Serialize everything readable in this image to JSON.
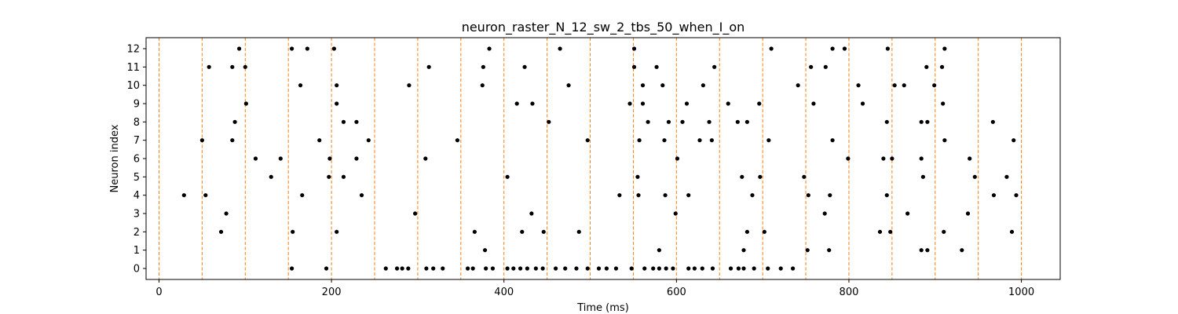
{
  "chart_data": {
    "type": "scatter",
    "title": "neuron_raster_N_12_sw_2_tbs_50_when_I_on",
    "xlabel": "Time (ms)",
    "ylabel": "Neuron index",
    "xlim": [
      -15,
      1045
    ],
    "ylim": [
      -0.6,
      12.6
    ],
    "x_ticks": [
      0,
      200,
      400,
      600,
      800,
      1000
    ],
    "y_ticks": [
      0,
      1,
      2,
      3,
      4,
      5,
      6,
      7,
      8,
      9,
      10,
      11,
      12
    ],
    "marker_color": "#000000",
    "reference_lines": {
      "orientation": "vertical",
      "style": "dashed",
      "color": "#ff7f0e",
      "x": [
        0,
        50,
        100,
        150,
        200,
        250,
        300,
        350,
        400,
        450,
        500,
        550,
        600,
        650,
        700,
        750,
        800,
        850,
        900,
        950,
        1000
      ]
    },
    "series": [
      {
        "points": [
          [
            154,
            0
          ],
          [
            194,
            0
          ],
          [
            263,
            0
          ],
          [
            276,
            0
          ],
          [
            282,
            0
          ],
          [
            289,
            0
          ],
          [
            310,
            0
          ],
          [
            318,
            0
          ],
          [
            329,
            0
          ],
          [
            358,
            0
          ],
          [
            364,
            0
          ],
          [
            379,
            0
          ],
          [
            387,
            0
          ],
          [
            404,
            0
          ],
          [
            411,
            0
          ],
          [
            419,
            0
          ],
          [
            427,
            0
          ],
          [
            437,
            0
          ],
          [
            445,
            0
          ],
          [
            460,
            0
          ],
          [
            471,
            0
          ],
          [
            484,
            0
          ],
          [
            497,
            0
          ],
          [
            510,
            0
          ],
          [
            519,
            0
          ],
          [
            530,
            0
          ],
          [
            548,
            0
          ],
          [
            563,
            0
          ],
          [
            573,
            0
          ],
          [
            580,
            0
          ],
          [
            588,
            0
          ],
          [
            596,
            0
          ],
          [
            614,
            0
          ],
          [
            621,
            0
          ],
          [
            630,
            0
          ],
          [
            642,
            0
          ],
          [
            663,
            0
          ],
          [
            672,
            0
          ],
          [
            678,
            0
          ],
          [
            690,
            0
          ],
          [
            706,
            0
          ],
          [
            721,
            0
          ],
          [
            735,
            0
          ],
          [
            580,
            1
          ],
          [
            378,
            1
          ],
          [
            678,
            1
          ],
          [
            752,
            1
          ],
          [
            777,
            1
          ],
          [
            884,
            1
          ],
          [
            891,
            1
          ],
          [
            931,
            1
          ],
          [
            72,
            2
          ],
          [
            155,
            2
          ],
          [
            206,
            2
          ],
          [
            366,
            2
          ],
          [
            421,
            2
          ],
          [
            446,
            2
          ],
          [
            487,
            2
          ],
          [
            682,
            2
          ],
          [
            702,
            2
          ],
          [
            836,
            2
          ],
          [
            848,
            2
          ],
          [
            910,
            2
          ],
          [
            989,
            2
          ],
          [
            78,
            3
          ],
          [
            297,
            3
          ],
          [
            432,
            3
          ],
          [
            599,
            3
          ],
          [
            772,
            3
          ],
          [
            868,
            3
          ],
          [
            938,
            3
          ],
          [
            29,
            4
          ],
          [
            54,
            4
          ],
          [
            166,
            4
          ],
          [
            235,
            4
          ],
          [
            534,
            4
          ],
          [
            556,
            4
          ],
          [
            587,
            4
          ],
          [
            614,
            4
          ],
          [
            688,
            4
          ],
          [
            753,
            4
          ],
          [
            778,
            4
          ],
          [
            844,
            4
          ],
          [
            968,
            4
          ],
          [
            994,
            4
          ],
          [
            130,
            5
          ],
          [
            197,
            5
          ],
          [
            214,
            5
          ],
          [
            404,
            5
          ],
          [
            555,
            5
          ],
          [
            676,
            5
          ],
          [
            697,
            5
          ],
          [
            748,
            5
          ],
          [
            886,
            5
          ],
          [
            946,
            5
          ],
          [
            983,
            5
          ],
          [
            112,
            6
          ],
          [
            141,
            6
          ],
          [
            198,
            6
          ],
          [
            229,
            6
          ],
          [
            309,
            6
          ],
          [
            601,
            6
          ],
          [
            799,
            6
          ],
          [
            840,
            6
          ],
          [
            850,
            6
          ],
          [
            884,
            6
          ],
          [
            940,
            6
          ],
          [
            50,
            7
          ],
          [
            85,
            7
          ],
          [
            186,
            7
          ],
          [
            243,
            7
          ],
          [
            346,
            7
          ],
          [
            497,
            7
          ],
          [
            557,
            7
          ],
          [
            586,
            7
          ],
          [
            627,
            7
          ],
          [
            641,
            7
          ],
          [
            707,
            7
          ],
          [
            781,
            7
          ],
          [
            911,
            7
          ],
          [
            991,
            7
          ],
          [
            88,
            8
          ],
          [
            214,
            8
          ],
          [
            229,
            8
          ],
          [
            452,
            8
          ],
          [
            567,
            8
          ],
          [
            591,
            8
          ],
          [
            607,
            8
          ],
          [
            638,
            8
          ],
          [
            671,
            8
          ],
          [
            682,
            8
          ],
          [
            844,
            8
          ],
          [
            884,
            8
          ],
          [
            891,
            8
          ],
          [
            967,
            8
          ],
          [
            101,
            9
          ],
          [
            206,
            9
          ],
          [
            415,
            9
          ],
          [
            433,
            9
          ],
          [
            546,
            9
          ],
          [
            561,
            9
          ],
          [
            612,
            9
          ],
          [
            660,
            9
          ],
          [
            696,
            9
          ],
          [
            759,
            9
          ],
          [
            816,
            9
          ],
          [
            909,
            9
          ],
          [
            164,
            10
          ],
          [
            206,
            10
          ],
          [
            290,
            10
          ],
          [
            375,
            10
          ],
          [
            475,
            10
          ],
          [
            561,
            10
          ],
          [
            584,
            10
          ],
          [
            631,
            10
          ],
          [
            741,
            10
          ],
          [
            811,
            10
          ],
          [
            853,
            10
          ],
          [
            864,
            10
          ],
          [
            899,
            10
          ],
          [
            58,
            11
          ],
          [
            85,
            11
          ],
          [
            100,
            11
          ],
          [
            313,
            11
          ],
          [
            376,
            11
          ],
          [
            424,
            11
          ],
          [
            551,
            11
          ],
          [
            577,
            11
          ],
          [
            644,
            11
          ],
          [
            756,
            11
          ],
          [
            773,
            11
          ],
          [
            890,
            11
          ],
          [
            908,
            11
          ],
          [
            93,
            12
          ],
          [
            154,
            12
          ],
          [
            172,
            12
          ],
          [
            203,
            12
          ],
          [
            383,
            12
          ],
          [
            465,
            12
          ],
          [
            551,
            12
          ],
          [
            710,
            12
          ],
          [
            781,
            12
          ],
          [
            795,
            12
          ],
          [
            845,
            12
          ],
          [
            911,
            12
          ]
        ]
      }
    ]
  }
}
